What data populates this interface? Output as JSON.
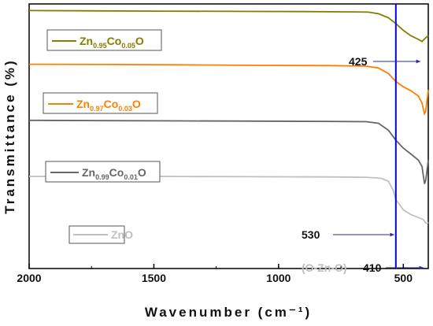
{
  "chart_data": {
    "type": "line",
    "xlabel": "Wavenumber (cm⁻¹)",
    "ylabel": "Transmittance (%)",
    "xlim": [
      2000,
      400
    ],
    "x_ticks": [
      2000,
      1500,
      1000,
      500
    ],
    "x_tick_labels": [
      "2000",
      "1500",
      "1000",
      "500"
    ],
    "grid": false,
    "series": [
      {
        "name": "Zn0.95Co0.05O",
        "label": {
          "base": "Zn",
          "sub1": "0.95",
          "mid": "Co",
          "sub2": "0.05",
          "end": "O"
        },
        "color": "#808000",
        "points": [
          [
            2000,
            97.5
          ],
          [
            1800,
            97.4
          ],
          [
            1500,
            97.3
          ],
          [
            1200,
            97.2
          ],
          [
            900,
            97.1
          ],
          [
            700,
            97.0
          ],
          [
            640,
            96.9
          ],
          [
            600,
            96.3
          ],
          [
            560,
            94.8
          ],
          [
            530,
            92.6
          ],
          [
            500,
            90.0
          ],
          [
            470,
            88.0
          ],
          [
            440,
            86.6
          ],
          [
            425,
            85.8
          ],
          [
            415,
            86.8
          ],
          [
            405,
            87.6
          ],
          [
            400,
            88.0
          ]
        ]
      },
      {
        "name": "Zn0.97Co0.03O",
        "label": {
          "base": "Zn",
          "sub1": "0.97",
          "mid": "Co",
          "sub2": "0.03",
          "end": "O"
        },
        "color": "#ff7f00",
        "points": [
          [
            2000,
            77.2
          ],
          [
            1700,
            77.1
          ],
          [
            1400,
            77.0
          ],
          [
            1100,
            76.8
          ],
          [
            800,
            76.7
          ],
          [
            650,
            76.5
          ],
          [
            600,
            75.8
          ],
          [
            560,
            73.7
          ],
          [
            530,
            70.7
          ],
          [
            500,
            68.7
          ],
          [
            470,
            67.2
          ],
          [
            440,
            65.2
          ],
          [
            425,
            62.5
          ],
          [
            415,
            58.5
          ],
          [
            410,
            59.5
          ],
          [
            405,
            63.5
          ],
          [
            400,
            67.5
          ]
        ]
      },
      {
        "name": "Zn0.99Co0.01O",
        "label": {
          "base": "Zn",
          "sub1": "0.99",
          "mid": "Co",
          "sub2": "0.01",
          "end": "O"
        },
        "color": "#666666",
        "points": [
          [
            2000,
            56.0
          ],
          [
            1700,
            55.9
          ],
          [
            1400,
            55.8
          ],
          [
            1100,
            55.7
          ],
          [
            800,
            55.6
          ],
          [
            650,
            55.5
          ],
          [
            600,
            54.9
          ],
          [
            560,
            52.3
          ],
          [
            530,
            48.5
          ],
          [
            500,
            45.5
          ],
          [
            470,
            43.3
          ],
          [
            440,
            41.0
          ],
          [
            425,
            38.5
          ],
          [
            415,
            32.0
          ],
          [
            410,
            33.5
          ],
          [
            405,
            37.0
          ],
          [
            400,
            41.0
          ]
        ]
      },
      {
        "name": "ZnO",
        "label": {
          "base": "ZnO",
          "sub1": "",
          "mid": "",
          "sub2": "",
          "end": ""
        },
        "color": "#c0c0c0",
        "points": [
          [
            2000,
            34.8
          ],
          [
            1700,
            34.9
          ],
          [
            1400,
            34.8
          ],
          [
            1100,
            34.7
          ],
          [
            800,
            34.6
          ],
          [
            650,
            34.5
          ],
          [
            590,
            34.1
          ],
          [
            560,
            33.0
          ],
          [
            540,
            29.5
          ],
          [
            530,
            26.0
          ],
          [
            500,
            22.2
          ],
          [
            470,
            20.4
          ],
          [
            440,
            19.3
          ],
          [
            420,
            18.5
          ],
          [
            410,
            17.2
          ],
          [
            405,
            17.0
          ],
          [
            400,
            17.4
          ]
        ]
      }
    ],
    "vertical_line": {
      "x": 530,
      "color": "#0000ee"
    },
    "annotations": [
      {
        "text": "425",
        "x": 425
      },
      {
        "text": "530",
        "x": 530
      },
      {
        "text": "410",
        "x": 410
      },
      {
        "text": "(O-Zn-O)",
        "x": 410
      }
    ]
  }
}
